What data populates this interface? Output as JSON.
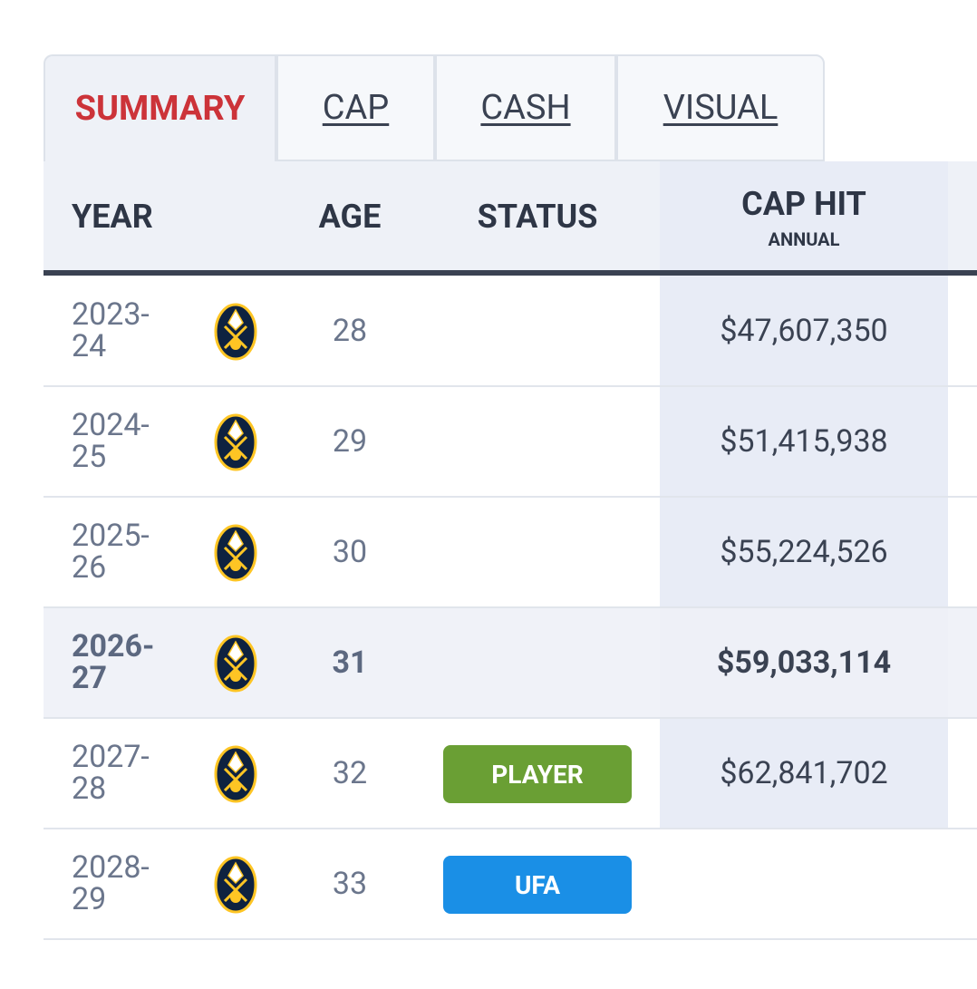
{
  "tabs": {
    "items": [
      "SUMMARY",
      "CAP",
      "CASH",
      "VISUAL"
    ],
    "active": 0
  },
  "table": {
    "headers": {
      "year": "YEAR",
      "age": "AGE",
      "status": "STATUS",
      "cap_hit": "CAP HIT",
      "cap_hit_sub": "ANNUAL"
    },
    "rows": [
      {
        "year": "2023-24",
        "age": "28",
        "status": null,
        "cap_hit": "$47,607,350"
      },
      {
        "year": "2024-25",
        "age": "29",
        "status": null,
        "cap_hit": "$51,415,938"
      },
      {
        "year": "2025-26",
        "age": "30",
        "status": null,
        "cap_hit": "$55,224,526"
      },
      {
        "year": "2026-27",
        "age": "31",
        "status": null,
        "cap_hit": "$59,033,114",
        "highlighted": true
      },
      {
        "year": "2027-28",
        "age": "32",
        "status": {
          "label": "PLAYER",
          "color": "#6a9f34"
        },
        "cap_hit": "$62,841,702"
      },
      {
        "year": "2028-29",
        "age": "33",
        "status": {
          "label": "UFA",
          "color": "#1a8fe6"
        },
        "cap_hit": null
      }
    ]
  }
}
